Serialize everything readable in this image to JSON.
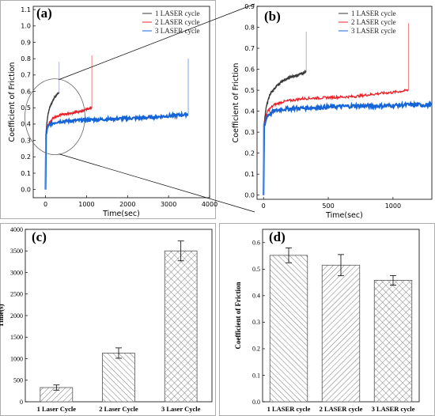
{
  "colors": {
    "cycle1": "#3a3a3a",
    "cycle2": "#e8232a",
    "cycle3": "#1565d8",
    "cycle3_light": "#5b8fe0",
    "cycle1_spike": "#b0b0d8",
    "cycle2_spike": "#f08080",
    "cycle3_spike": "#7aa8e8"
  },
  "chart_data": [
    {
      "panel": "(a)",
      "type": "line",
      "xlabel": "Time(sec)",
      "ylabel": "Coefficient of Friction",
      "xlim": [
        -300,
        4000
      ],
      "ylim": [
        -0.05,
        1.12
      ],
      "xticks": [
        0,
        1000,
        2000,
        3000,
        4000
      ],
      "yticks": [
        0.0,
        0.1,
        0.2,
        0.3,
        0.4,
        0.5,
        0.6,
        0.7,
        0.8,
        0.9,
        1.0,
        1.1
      ],
      "legend": "top-right",
      "annotation": "ellipse highlighting 0-550 s region",
      "series": [
        {
          "name": "1 LASER cycle",
          "x": [
            0,
            10,
            30,
            60,
            100,
            150,
            200,
            250,
            300,
            330
          ],
          "y": [
            0.0,
            0.34,
            0.4,
            0.46,
            0.5,
            0.53,
            0.555,
            0.57,
            0.59,
            0.59
          ],
          "spike": [
            330,
            0.78
          ]
        },
        {
          "name": "2 LASER cycle",
          "x": [
            0,
            10,
            40,
            100,
            200,
            400,
            600,
            800,
            1000,
            1130
          ],
          "y": [
            0.0,
            0.34,
            0.38,
            0.41,
            0.44,
            0.46,
            0.465,
            0.475,
            0.49,
            0.5
          ],
          "spike": [
            1130,
            0.82
          ]
        },
        {
          "name": "3 LASER cycle",
          "x": [
            0,
            10,
            40,
            100,
            300,
            600,
            1000,
            1500,
            2000,
            2500,
            3000,
            3480
          ],
          "y": [
            0.0,
            0.33,
            0.37,
            0.4,
            0.415,
            0.42,
            0.425,
            0.43,
            0.435,
            0.44,
            0.45,
            0.46
          ],
          "spike": [
            3480,
            0.8
          ]
        }
      ]
    },
    {
      "panel": "(b)",
      "type": "line",
      "xlabel": "Time(sec)",
      "ylabel": "Coefficient of Friction",
      "xlim": [
        -50,
        1300
      ],
      "ylim": [
        -0.02,
        0.9
      ],
      "xticks": [
        0,
        500,
        1000
      ],
      "yticks": [
        0.0,
        0.1,
        0.2,
        0.3,
        0.4,
        0.5,
        0.6,
        0.7,
        0.8,
        0.9
      ],
      "legend": "top-right",
      "series": [
        {
          "name": "1 LASER cycle",
          "x": [
            0,
            5,
            20,
            50,
            100,
            150,
            200,
            250,
            300,
            330
          ],
          "y": [
            0.0,
            0.34,
            0.42,
            0.48,
            0.52,
            0.545,
            0.56,
            0.57,
            0.58,
            0.59
          ],
          "spike": [
            330,
            0.78
          ]
        },
        {
          "name": "2 LASER cycle",
          "x": [
            0,
            5,
            30,
            80,
            150,
            300,
            500,
            700,
            900,
            1000,
            1120
          ],
          "y": [
            0.0,
            0.34,
            0.4,
            0.43,
            0.445,
            0.46,
            0.465,
            0.47,
            0.485,
            0.49,
            0.5
          ],
          "spike": [
            1120,
            0.82
          ]
        },
        {
          "name": "3 LASER cycle",
          "x": [
            0,
            5,
            30,
            80,
            150,
            300,
            500,
            700,
            900,
            1100,
            1300
          ],
          "y": [
            0.0,
            0.33,
            0.38,
            0.4,
            0.41,
            0.415,
            0.42,
            0.425,
            0.425,
            0.43,
            0.43
          ]
        }
      ]
    },
    {
      "panel": "(c)",
      "type": "bar",
      "xlabel": "",
      "ylabel": "Time(s)",
      "ylim": [
        0,
        4000
      ],
      "yticks": [
        0,
        500,
        1000,
        1500,
        2000,
        2500,
        3000,
        3500,
        4000
      ],
      "categories": [
        "1 Laser Cycle",
        "2 Laser Cycle",
        "3 Laser Cycle"
      ],
      "values": [
        330,
        1130,
        3500
      ],
      "errors": [
        60,
        120,
        230
      ],
      "hatch": [
        "forward",
        "backward",
        "cross"
      ]
    },
    {
      "panel": "(d)",
      "type": "bar",
      "xlabel": "",
      "ylabel": "Coefficient of Friction",
      "ylim": [
        0,
        0.65
      ],
      "yticks": [
        0.0,
        0.1,
        0.2,
        0.3,
        0.4,
        0.5,
        0.6
      ],
      "categories": [
        "1 LASER cycle",
        "2 LASER cycle",
        "3 LASER cycle"
      ],
      "values": [
        0.552,
        0.515,
        0.458
      ],
      "errors": [
        0.028,
        0.04,
        0.018
      ],
      "hatch": [
        "backward",
        "forward",
        "cross"
      ]
    }
  ]
}
